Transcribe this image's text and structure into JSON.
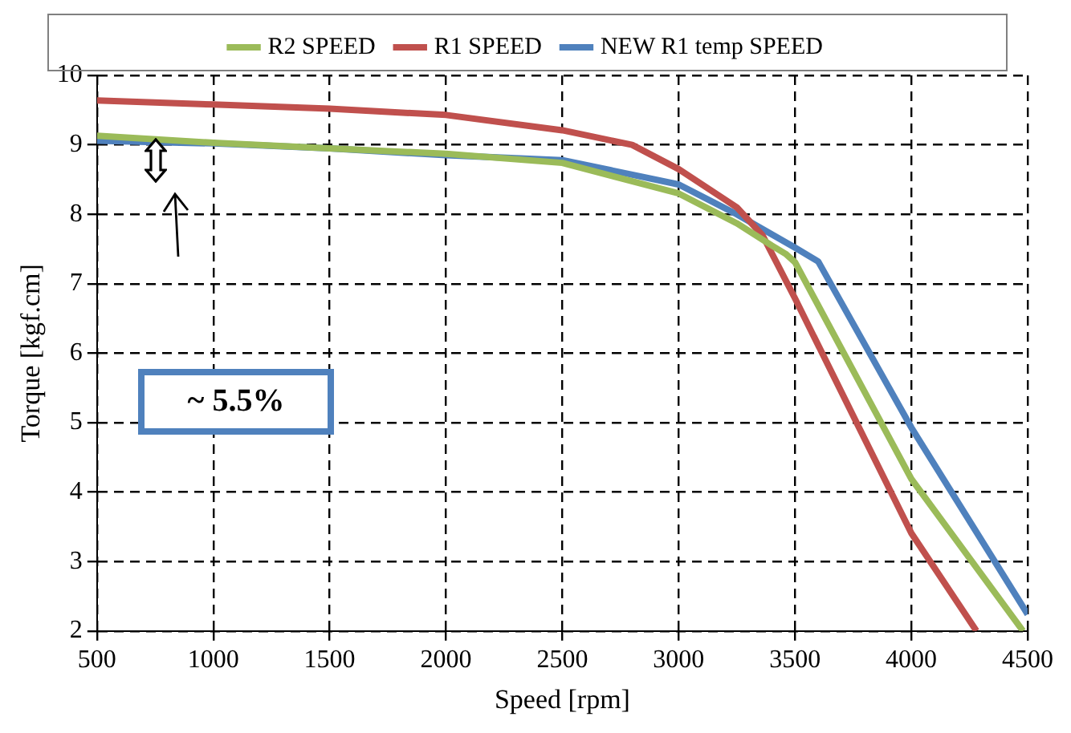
{
  "chart_data": {
    "type": "line",
    "xlabel": "Speed [rpm]",
    "ylabel": "Torque [kgf.cm]",
    "xlim": [
      500,
      4500
    ],
    "xticks": [
      500,
      1000,
      1500,
      2000,
      2500,
      3000,
      3500,
      4000,
      4500
    ],
    "ylim": [
      2,
      10
    ],
    "yticks": [
      2,
      3,
      4,
      5,
      6,
      7,
      8,
      9,
      10
    ],
    "grid": true,
    "legend": "top",
    "line_style": "solid",
    "marker": "none",
    "annotations": [
      "~ 5.5%"
    ],
    "series": [
      {
        "name": "R2 SPEED",
        "color": "#9bbb59",
        "x": [
          500,
          1000,
          1500,
          2000,
          2500,
          3000,
          3250,
          3400,
          3460,
          3500,
          4000,
          4480
        ],
        "values": [
          9.13,
          9.03,
          8.95,
          8.87,
          8.74,
          8.3,
          7.87,
          7.55,
          7.43,
          7.31,
          4.19,
          2.0
        ]
      },
      {
        "name": "R1 SPEED",
        "color": "#c0504d",
        "x": [
          500,
          1000,
          1500,
          2000,
          2500,
          2800,
          3000,
          3250,
          3360,
          3500,
          4000,
          4280
        ],
        "values": [
          9.64,
          9.58,
          9.52,
          9.43,
          9.21,
          9.0,
          8.65,
          8.1,
          7.7,
          6.79,
          3.41,
          2.0
        ]
      },
      {
        "name": "NEW R1 temp SPEED",
        "color": "#4f81bd",
        "x": [
          500,
          1000,
          1500,
          2000,
          2500,
          3000,
          3250,
          3500,
          3600,
          4000,
          4500
        ],
        "values": [
          9.06,
          9.02,
          8.95,
          8.85,
          8.78,
          8.43,
          8.0,
          7.52,
          7.32,
          4.93,
          2.24
        ]
      }
    ]
  }
}
